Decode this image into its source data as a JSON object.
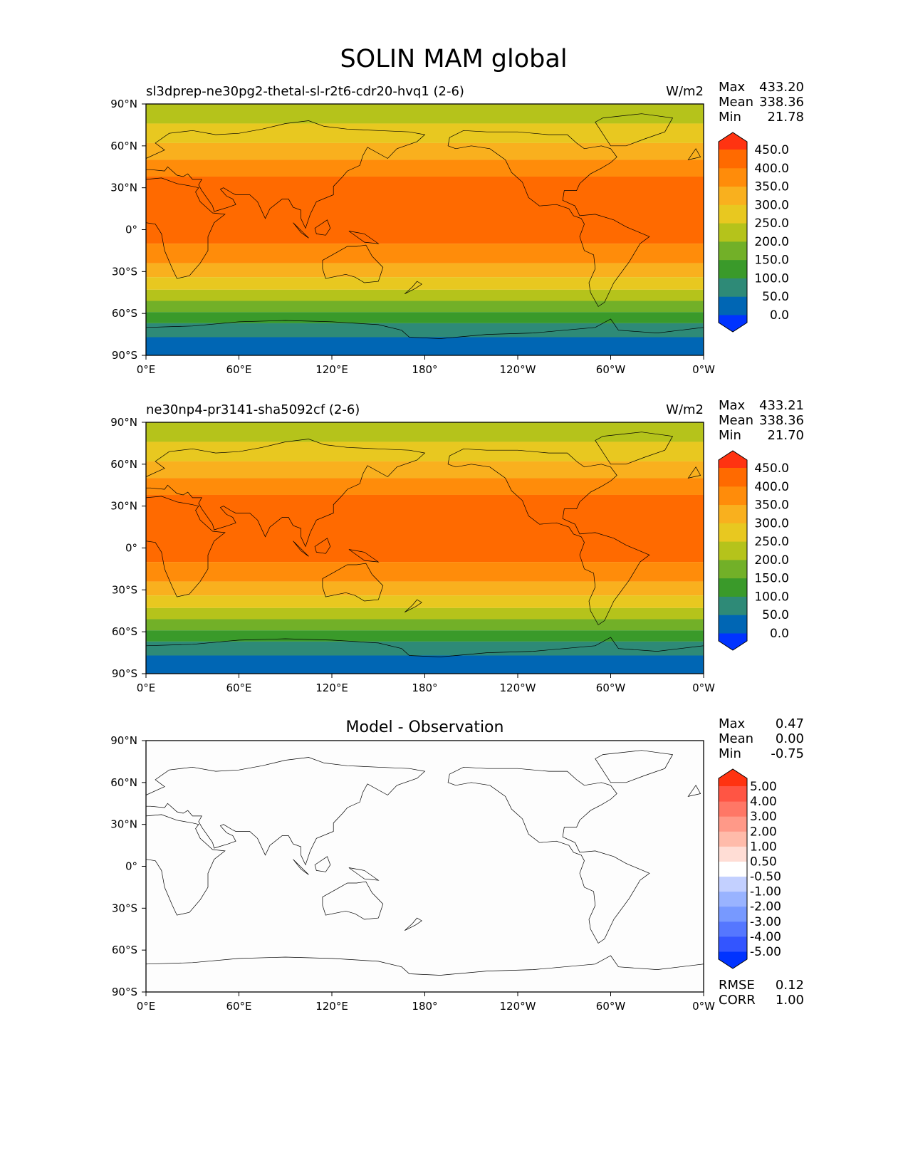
{
  "page": {
    "title": "SOLIN MAM global"
  },
  "chart_data": [
    {
      "type": "heatmap",
      "title": "sl3dprep-ne30pg2-thetal-sl-r2t6-cdr20-hvq1 (2-6)",
      "units": "W/m2",
      "stats": {
        "max_label": "Max",
        "max": "433.20",
        "mean_label": "Mean",
        "mean": "338.36",
        "min_label": "Min",
        "min": "21.78"
      },
      "x_ticks": [
        "0°E",
        "60°E",
        "120°E",
        "180°",
        "120°W",
        "60°W",
        "0°W"
      ],
      "y_ticks": [
        "90°N",
        "60°N",
        "30°N",
        "0°",
        "30°S",
        "60°S",
        "90°S"
      ],
      "xlim": [
        0,
        360
      ],
      "ylim": [
        -90,
        90
      ],
      "colorbar": {
        "levels": [
          "0.0",
          "50.0",
          "100.0",
          "150.0",
          "200.0",
          "250.0",
          "300.0",
          "350.0",
          "400.0",
          "450.0"
        ],
        "colors": [
          "#0033ff",
          "#0066b4",
          "#2e8a77",
          "#3a9a2a",
          "#72b028",
          "#b5c31b",
          "#e8c820",
          "#f9b01e",
          "#ff8c0a",
          "#ff6a00",
          "#ff3311"
        ]
      },
      "bands": [
        {
          "lat_from": 90,
          "lat_to": 76,
          "value": 225
        },
        {
          "lat_from": 76,
          "lat_to": 62,
          "value": 275
        },
        {
          "lat_from": 62,
          "lat_to": 50,
          "value": 325
        },
        {
          "lat_from": 50,
          "lat_to": 38,
          "value": 375
        },
        {
          "lat_from": 38,
          "lat_to": -10,
          "value": 425
        },
        {
          "lat_from": -10,
          "lat_to": -24,
          "value": 375
        },
        {
          "lat_from": -24,
          "lat_to": -34,
          "value": 325
        },
        {
          "lat_from": -34,
          "lat_to": -43,
          "value": 275
        },
        {
          "lat_from": -43,
          "lat_to": -51,
          "value": 225
        },
        {
          "lat_from": -51,
          "lat_to": -59,
          "value": 175
        },
        {
          "lat_from": -59,
          "lat_to": -67,
          "value": 125
        },
        {
          "lat_from": -67,
          "lat_to": -77,
          "value": 75
        },
        {
          "lat_from": -77,
          "lat_to": -90,
          "value": 25
        }
      ]
    },
    {
      "type": "heatmap",
      "title": "ne30np4-pr3141-sha5092cf (2-6)",
      "units": "W/m2",
      "stats": {
        "max_label": "Max",
        "max": "433.21",
        "mean_label": "Mean",
        "mean": "338.36",
        "min_label": "Min",
        "min": "21.70"
      },
      "x_ticks": [
        "0°E",
        "60°E",
        "120°E",
        "180°",
        "120°W",
        "60°W",
        "0°W"
      ],
      "y_ticks": [
        "90°N",
        "60°N",
        "30°N",
        "0°",
        "30°S",
        "60°S",
        "90°S"
      ],
      "xlim": [
        0,
        360
      ],
      "ylim": [
        -90,
        90
      ],
      "colorbar": {
        "levels": [
          "0.0",
          "50.0",
          "100.0",
          "150.0",
          "200.0",
          "250.0",
          "300.0",
          "350.0",
          "400.0",
          "450.0"
        ],
        "colors": [
          "#0033ff",
          "#0066b4",
          "#2e8a77",
          "#3a9a2a",
          "#72b028",
          "#b5c31b",
          "#e8c820",
          "#f9b01e",
          "#ff8c0a",
          "#ff6a00",
          "#ff3311"
        ]
      },
      "bands": [
        {
          "lat_from": 90,
          "lat_to": 76,
          "value": 225
        },
        {
          "lat_from": 76,
          "lat_to": 62,
          "value": 275
        },
        {
          "lat_from": 62,
          "lat_to": 50,
          "value": 325
        },
        {
          "lat_from": 50,
          "lat_to": 38,
          "value": 375
        },
        {
          "lat_from": 38,
          "lat_to": -10,
          "value": 425
        },
        {
          "lat_from": -10,
          "lat_to": -24,
          "value": 375
        },
        {
          "lat_from": -24,
          "lat_to": -34,
          "value": 325
        },
        {
          "lat_from": -34,
          "lat_to": -43,
          "value": 275
        },
        {
          "lat_from": -43,
          "lat_to": -51,
          "value": 225
        },
        {
          "lat_from": -51,
          "lat_to": -59,
          "value": 175
        },
        {
          "lat_from": -59,
          "lat_to": -67,
          "value": 125
        },
        {
          "lat_from": -67,
          "lat_to": -77,
          "value": 75
        },
        {
          "lat_from": -77,
          "lat_to": -90,
          "value": 25
        }
      ]
    },
    {
      "type": "heatmap",
      "title": "Model - Observation",
      "units": "",
      "stats": {
        "max_label": "Max",
        "max": "0.47",
        "mean_label": "Mean",
        "mean": "0.00",
        "min_label": "Min",
        "min": "-0.75"
      },
      "extra_stats": {
        "rmse_label": "RMSE",
        "rmse": "0.12",
        "corr_label": "CORR",
        "corr": "1.00"
      },
      "x_ticks": [
        "0°E",
        "60°E",
        "120°E",
        "180°",
        "120°W",
        "60°W",
        "0°W"
      ],
      "y_ticks": [
        "90°N",
        "60°N",
        "30°N",
        "0°",
        "30°S",
        "60°S",
        "90°S"
      ],
      "xlim": [
        0,
        360
      ],
      "ylim": [
        -90,
        90
      ],
      "colorbar": {
        "levels": [
          "-5.00",
          "-4.00",
          "-3.00",
          "-2.00",
          "-1.00",
          "-0.50",
          "0.50",
          "1.00",
          "2.00",
          "3.00",
          "4.00",
          "5.00"
        ],
        "colors": [
          "#0033ff",
          "#3355ff",
          "#5577ff",
          "#7799ff",
          "#99b3ff",
          "#c3d0ff",
          "#ffffff",
          "#ffddd5",
          "#ffbbaa",
          "#ff9988",
          "#ff7766",
          "#ff5544",
          "#ff3311"
        ]
      },
      "bands": [
        {
          "lat_from": 90,
          "lat_to": -90,
          "value": 0
        }
      ]
    }
  ]
}
